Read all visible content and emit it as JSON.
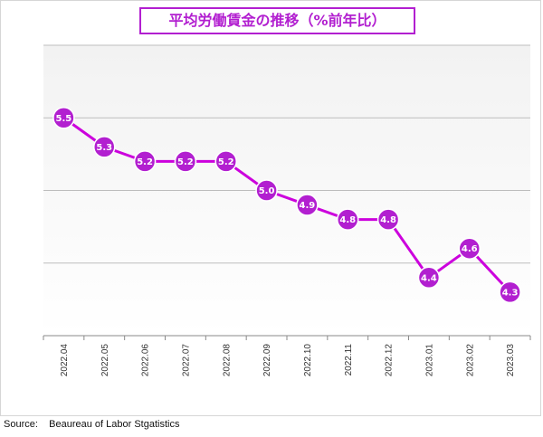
{
  "chart_data": {
    "type": "line",
    "title": "平均労働賃金の推移（%前年比）",
    "categories": [
      "2022.04",
      "2022.05",
      "2022.06",
      "2022.07",
      "2022.08",
      "2022.09",
      "2022.10",
      "2022.11",
      "2022.12",
      "2023.01",
      "2023.02",
      "2023.03"
    ],
    "values": [
      5.5,
      5.3,
      5.2,
      5.2,
      5.2,
      5.0,
      4.9,
      4.8,
      4.8,
      4.4,
      4.6,
      4.3
    ],
    "ylim": [
      4.0,
      6.0
    ],
    "grid": true,
    "colors": {
      "line": "#cc00dd",
      "marker_fill": "#b21fd0",
      "marker_stroke": "#ffffff",
      "plot_bg": "#f4f4f4",
      "title": "#b21fd0"
    }
  },
  "source": "Source:    Beaureau of Labor Stgatistics"
}
